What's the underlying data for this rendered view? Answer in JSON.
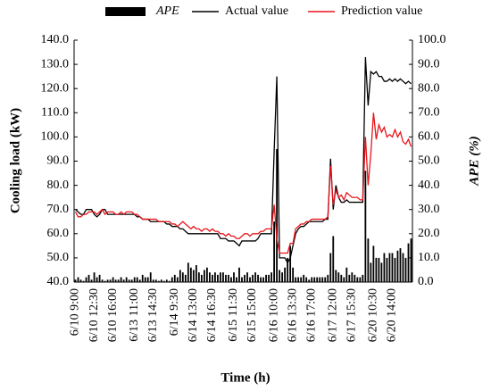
{
  "chart_data": {
    "type": "combo",
    "x_label": "Time (h)",
    "y_label": "Cooling load (kW)",
    "y2_label": "APE (%)",
    "categories": [
      "6/10 9:00",
      null,
      null,
      null,
      null,
      null,
      null,
      "6/10 12:30",
      null,
      null,
      null,
      null,
      null,
      null,
      "6/10 16:00",
      null,
      null,
      null,
      null,
      null,
      null,
      null,
      "6/13 11:00",
      null,
      null,
      null,
      null,
      null,
      null,
      "6/13 14:30",
      null,
      null,
      null,
      null,
      null,
      null,
      null,
      "6/14 9:30",
      null,
      null,
      null,
      null,
      null,
      null,
      "6/14 13:00",
      null,
      null,
      null,
      null,
      null,
      null,
      "6/14 16:30",
      null,
      null,
      null,
      null,
      null,
      null,
      null,
      "6/15 11:30",
      null,
      null,
      null,
      null,
      null,
      null,
      "6/15 15:00",
      null,
      null,
      null,
      null,
      null,
      null,
      null,
      "6/16 10:00",
      null,
      null,
      null,
      null,
      null,
      null,
      "6/16 13:30",
      null,
      null,
      null,
      null,
      null,
      null,
      "6/16 17:00",
      null,
      null,
      null,
      null,
      null,
      null,
      null,
      "6/17 12:00",
      null,
      null,
      null,
      null,
      null,
      null,
      "6/17 15:30",
      null,
      null,
      null,
      null,
      null,
      null,
      null,
      "6/20 10:30",
      null,
      null,
      null,
      null,
      null,
      null,
      "6/20 14:00",
      null,
      null,
      null,
      null,
      null,
      null,
      null
    ],
    "series": [
      {
        "name": "APE",
        "type": "bar",
        "axis": "y2",
        "color": "#000000",
        "values": [
          1,
          2,
          1,
          0.5,
          2,
          3,
          1,
          4,
          2,
          3,
          1,
          0.5,
          1,
          1,
          2,
          1,
          1,
          2,
          1,
          2,
          1,
          1,
          2,
          2,
          1,
          3,
          2,
          2,
          4,
          1,
          1,
          0.5,
          1,
          0.5,
          1,
          0.5,
          2,
          3,
          2,
          5,
          4,
          3,
          8,
          6,
          5,
          7,
          4,
          3,
          5,
          6,
          4,
          3,
          4,
          3,
          4,
          4,
          3,
          3,
          2,
          4,
          2,
          6,
          2,
          3,
          4,
          2,
          3,
          4,
          3,
          2,
          2,
          3,
          3,
          4,
          25,
          55,
          5,
          4,
          6,
          10,
          15,
          6,
          2,
          2,
          2,
          3,
          2,
          1,
          2,
          2,
          2,
          2,
          2,
          2,
          3,
          12,
          19,
          5,
          4,
          3,
          2,
          6,
          3,
          4,
          3,
          2,
          2,
          3,
          46,
          18,
          8,
          15,
          10,
          10,
          8,
          12,
          10,
          12,
          12,
          10,
          13,
          14,
          12,
          10,
          16,
          18
        ]
      },
      {
        "name": "Actual value",
        "type": "line",
        "color": "#000000",
        "values": [
          70,
          69,
          68,
          68,
          70,
          70,
          70,
          68,
          67,
          68,
          70,
          70,
          68,
          68,
          68,
          68,
          68,
          68,
          68,
          68,
          68,
          68,
          68,
          67,
          67,
          66,
          66,
          66,
          65,
          65,
          65,
          65,
          65,
          65,
          64,
          64,
          63,
          63,
          63,
          62,
          62,
          61,
          60,
          60,
          60,
          60,
          60,
          60,
          60,
          60,
          60,
          60,
          60,
          60,
          58,
          58,
          58,
          57,
          57,
          57,
          56,
          55,
          57,
          57,
          57,
          57,
          57,
          57,
          58,
          60,
          60,
          60,
          60,
          60,
          94,
          125,
          50,
          50,
          50,
          48,
          50,
          55,
          60,
          62,
          63,
          63,
          64,
          65,
          65,
          65,
          65,
          65,
          65,
          66,
          66,
          91,
          70,
          80,
          75,
          73,
          73,
          74,
          73,
          73,
          73,
          73,
          73,
          73,
          133,
          113,
          127,
          126,
          127,
          125,
          125,
          123,
          123,
          124,
          123,
          124,
          123,
          124,
          123,
          122,
          123,
          122
        ]
      },
      {
        "name": "Prediction value",
        "type": "line",
        "color": "#e8141c",
        "values": [
          69,
          67,
          67,
          68,
          68,
          69,
          69,
          69,
          68,
          69,
          70,
          68,
          69,
          69,
          69,
          68,
          68,
          69,
          68,
          69,
          69,
          69,
          68,
          68,
          67,
          66,
          66,
          66,
          66,
          66,
          66,
          65,
          65,
          65,
          65,
          65,
          64,
          64,
          63,
          64,
          65,
          64,
          63,
          62,
          63,
          62,
          62,
          61,
          62,
          62,
          61,
          62,
          61,
          61,
          60,
          60,
          59,
          60,
          59,
          59,
          58,
          58,
          59,
          60,
          60,
          59,
          60,
          60,
          60,
          61,
          61,
          62,
          62,
          62,
          72,
          58,
          52,
          52,
          52,
          52,
          56,
          56,
          62,
          63,
          64,
          64,
          65,
          65,
          66,
          66,
          66,
          66,
          66,
          66,
          67,
          88,
          72,
          78,
          75,
          76,
          74,
          77,
          76,
          75,
          75,
          75,
          74,
          74,
          100,
          80,
          93,
          110,
          99,
          105,
          102,
          104,
          100,
          101,
          100,
          103,
          100,
          102,
          98,
          97,
          99,
          96
        ]
      }
    ],
    "ylim": [
      40,
      140
    ],
    "yticks": [
      {
        "value": 40,
        "label": "40.0"
      },
      {
        "value": 50,
        "label": "50.0"
      },
      {
        "value": 60,
        "label": "60.0"
      },
      {
        "value": 70,
        "label": "70.0"
      },
      {
        "value": 80,
        "label": "80.0"
      },
      {
        "value": 90,
        "label": "90.0"
      },
      {
        "value": 100,
        "label": "100.0"
      },
      {
        "value": 110,
        "label": "110.0"
      },
      {
        "value": 120,
        "label": "120.0"
      },
      {
        "value": 130,
        "label": "130.0"
      },
      {
        "value": 140,
        "label": "140.0"
      }
    ],
    "y2lim": [
      0,
      100
    ],
    "y2ticks": [
      {
        "value": 0,
        "label": "0.0"
      },
      {
        "value": 10,
        "label": "10.0"
      },
      {
        "value": 20,
        "label": "20.0"
      },
      {
        "value": 30,
        "label": "30.0"
      },
      {
        "value": 40,
        "label": "40.0"
      },
      {
        "value": 50,
        "label": "50.0"
      },
      {
        "value": 60,
        "label": "60.0"
      },
      {
        "value": 70,
        "label": "70.0"
      },
      {
        "value": 80,
        "label": "80.0"
      },
      {
        "value": 90,
        "label": "90.0"
      },
      {
        "value": 100,
        "label": "100.0"
      }
    ],
    "grid": false,
    "legend": "top"
  }
}
